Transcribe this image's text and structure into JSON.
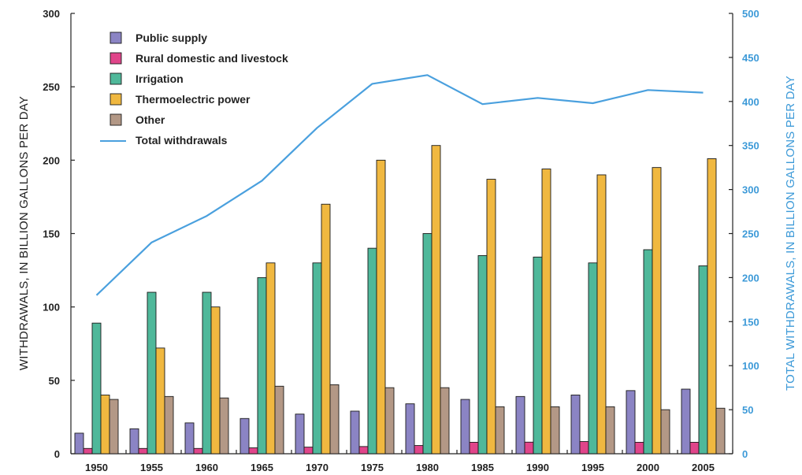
{
  "chart_data": {
    "type": "bar",
    "categories": [
      "1950",
      "1955",
      "1960",
      "1965",
      "1970",
      "1975",
      "1980",
      "1985",
      "1990",
      "1995",
      "2000",
      "2005"
    ],
    "series": [
      {
        "name": "Public supply",
        "color": "#8b84c4",
        "axis": "left",
        "values": [
          14,
          17,
          21,
          24,
          27,
          29,
          34,
          37,
          39,
          40,
          43,
          44
        ]
      },
      {
        "name": "Rural domestic and livestock",
        "color": "#e0458a",
        "axis": "left",
        "values": [
          3.6,
          3.6,
          3.6,
          4.0,
          4.5,
          4.9,
          5.6,
          7.8,
          7.9,
          8.3,
          7.8,
          7.8
        ]
      },
      {
        "name": "Irrigation",
        "color": "#4fb89a",
        "axis": "left",
        "values": [
          89,
          110,
          110,
          120,
          130,
          140,
          150,
          135,
          134,
          130,
          139,
          128
        ]
      },
      {
        "name": "Thermoelectric power",
        "color": "#f0b840",
        "axis": "left",
        "values": [
          40,
          72,
          100,
          130,
          170,
          200,
          210,
          187,
          194,
          190,
          195,
          201
        ]
      },
      {
        "name": "Other",
        "color": "#b39886",
        "axis": "left",
        "values": [
          37,
          39,
          38,
          46,
          47,
          45,
          45,
          32,
          32,
          32,
          30,
          31
        ]
      },
      {
        "name": "Total withdrawals",
        "type": "line",
        "color": "#4aa0de",
        "axis": "right",
        "values": [
          180,
          240,
          270,
          310,
          370,
          420,
          430,
          397,
          404,
          398,
          413,
          410
        ]
      }
    ],
    "ylabel": "WITHDRAWALS, IN BILLION GALLONS PER DAY",
    "ylabel_right": "TOTAL WITHDRAWALS, IN BILLION GALLONS PER DAY",
    "ylim": [
      0,
      300
    ],
    "ylim_right": [
      0,
      500
    ],
    "yticks": [
      0,
      50,
      100,
      150,
      200,
      250,
      300
    ],
    "yticks_right": [
      0,
      50,
      100,
      150,
      200,
      250,
      300,
      350,
      400,
      450,
      500
    ],
    "legend_position": "top-left",
    "grid": false
  }
}
